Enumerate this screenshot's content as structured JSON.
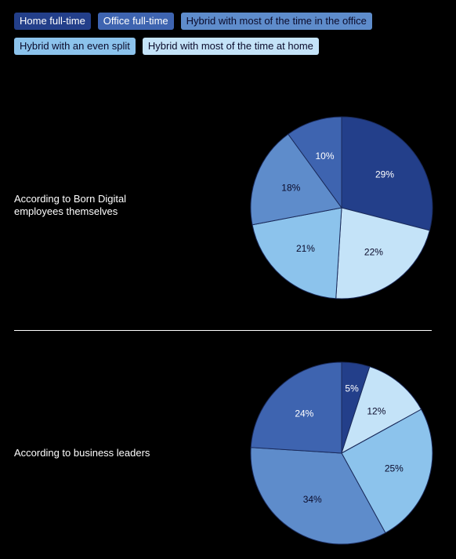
{
  "legend": [
    {
      "label": "Home full-time",
      "color": "#233F8A",
      "text_color": "#ffffff"
    },
    {
      "label": "Office full-time",
      "color": "#3E64B0",
      "text_color": "#ffffff"
    },
    {
      "label": "Hybrid with most of the time in the office",
      "color": "#5E8CCB",
      "text_color": "#0a0a2a"
    },
    {
      "label": "Hybrid with an even split",
      "color": "#8CC3EC",
      "text_color": "#0a0a2a"
    },
    {
      "label": "Hybrid with most of the time at home",
      "color": "#C4E3F8",
      "text_color": "#0a0a2a"
    }
  ],
  "chart_data": [
    {
      "type": "pie",
      "title": "According to Born Digital employees themselves",
      "categories": [
        "Home full-time",
        "Hybrid with most of the time at home",
        "Hybrid with an even split",
        "Hybrid with most of the time in the office",
        "Office full-time"
      ],
      "values": [
        29,
        22,
        21,
        18,
        10
      ],
      "labels": [
        "29%",
        "22%",
        "21%",
        "18%",
        "10%"
      ],
      "colors": [
        "#233F8A",
        "#C4E3F8",
        "#8CC3EC",
        "#5E8CCB",
        "#3E64B0"
      ],
      "label_colors": [
        "#ffffff",
        "#0a0a2a",
        "#0a0a2a",
        "#0a0a2a",
        "#ffffff"
      ]
    },
    {
      "type": "pie",
      "title": "According to business leaders",
      "categories": [
        "Home full-time",
        "Hybrid with most of the time at home",
        "Hybrid with an even split",
        "Hybrid with most of the time in the office",
        "Office full-time"
      ],
      "values": [
        5,
        12,
        25,
        34,
        24
      ],
      "labels": [
        "5%",
        "12%",
        "25%",
        "34%",
        "24%"
      ],
      "colors": [
        "#233F8A",
        "#C4E3F8",
        "#8CC3EC",
        "#5E8CCB",
        "#3E64B0"
      ],
      "label_colors": [
        "#ffffff",
        "#0a0a2a",
        "#0a0a2a",
        "#0a0a2a",
        "#ffffff"
      ]
    }
  ]
}
